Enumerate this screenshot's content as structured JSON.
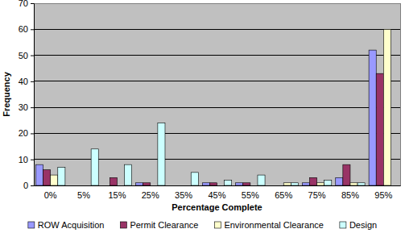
{
  "chart_data": {
    "type": "bar",
    "x_label": "Percentage Complete",
    "y_label": "Frequency",
    "categories": [
      "0%",
      "5%",
      "15%",
      "25%",
      "35%",
      "45%",
      "55%",
      "65%",
      "75%",
      "85%",
      "95%"
    ],
    "series": [
      {
        "name": "ROW Acquisition",
        "color": "#9999ff",
        "values": [
          8,
          0,
          0,
          1,
          0,
          1,
          1,
          0,
          1,
          3,
          52
        ]
      },
      {
        "name": "Permit Clearance",
        "color": "#993366",
        "values": [
          6,
          0,
          3,
          1,
          0,
          1,
          1,
          0,
          3,
          8,
          43
        ]
      },
      {
        "name": "Environmental Clearance",
        "color": "#ffffcc",
        "values": [
          4,
          0,
          0,
          0,
          0,
          0,
          0,
          1,
          1,
          1,
          60
        ]
      },
      {
        "name": "Design",
        "color": "#ccffff",
        "values": [
          7,
          14,
          8,
          24,
          5,
          2,
          4,
          1,
          2,
          1,
          0
        ]
      }
    ],
    "ylim": [
      0,
      70
    ],
    "yticks": [
      0,
      10,
      20,
      30,
      40,
      50,
      60,
      70
    ],
    "grid": true,
    "legend": "bottom"
  }
}
